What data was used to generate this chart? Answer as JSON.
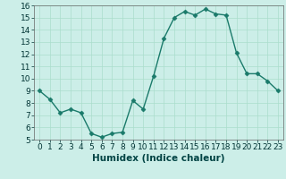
{
  "x": [
    0,
    1,
    2,
    3,
    4,
    5,
    6,
    7,
    8,
    9,
    10,
    11,
    12,
    13,
    14,
    15,
    16,
    17,
    18,
    19,
    20,
    21,
    22,
    23
  ],
  "y": [
    9.0,
    8.3,
    7.2,
    7.5,
    7.2,
    5.5,
    5.2,
    5.5,
    5.6,
    8.2,
    7.5,
    10.2,
    13.3,
    15.0,
    15.5,
    15.2,
    15.7,
    15.3,
    15.2,
    12.1,
    10.4,
    10.4,
    9.8,
    9.0
  ],
  "line_color": "#1a7a6a",
  "marker": "D",
  "marker_size": 2.5,
  "bg_color": "#cceee8",
  "grid_color": "#aaddcc",
  "xlabel": "Humidex (Indice chaleur)",
  "xlim": [
    -0.5,
    23.5
  ],
  "ylim": [
    5,
    16
  ],
  "yticks": [
    5,
    6,
    7,
    8,
    9,
    10,
    11,
    12,
    13,
    14,
    15,
    16
  ],
  "xticks": [
    0,
    1,
    2,
    3,
    4,
    5,
    6,
    7,
    8,
    9,
    10,
    11,
    12,
    13,
    14,
    15,
    16,
    17,
    18,
    19,
    20,
    21,
    22,
    23
  ],
  "tick_fontsize": 6.5,
  "xlabel_fontsize": 7.5,
  "linewidth": 1.0
}
